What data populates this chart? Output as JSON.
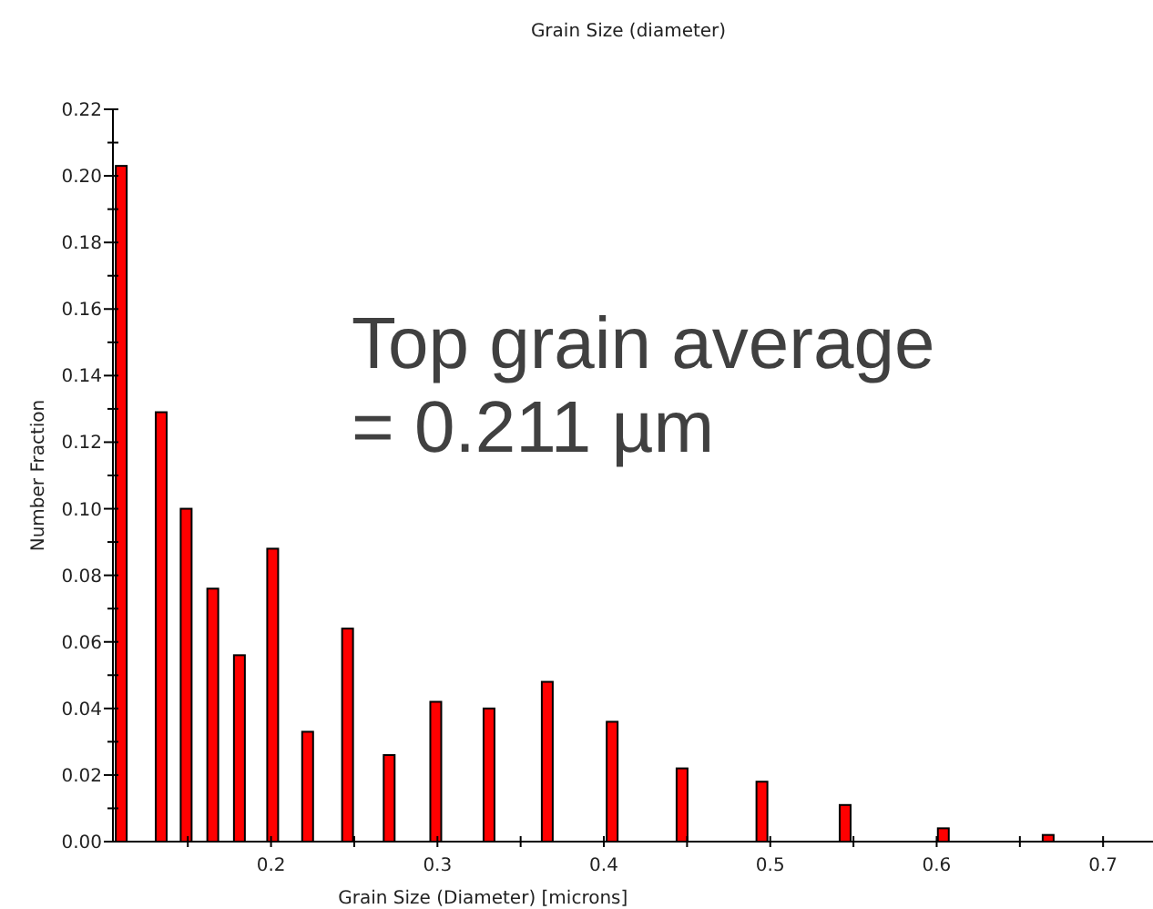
{
  "chart_data": {
    "type": "bar",
    "title": "Grain Size (diameter)",
    "xlabel": "Grain Size (Diameter) [microns]",
    "ylabel": "Number Fraction",
    "x": [
      0.11,
      0.134,
      0.149,
      0.165,
      0.181,
      0.201,
      0.222,
      0.246,
      0.271,
      0.299,
      0.331,
      0.366,
      0.405,
      0.447,
      0.495,
      0.545,
      0.604,
      0.667
    ],
    "series": [
      {
        "color": "#ff0000",
        "values": [
          0.203,
          0.129,
          0.1,
          0.076,
          0.056,
          0.088,
          0.033,
          0.064,
          0.026,
          0.042,
          0.04,
          0.048,
          0.036,
          0.022,
          0.018,
          0.011,
          0.004,
          0.002
        ]
      }
    ],
    "xlim": [
      0.105,
      0.73
    ],
    "xticks": [
      {
        "value": 0.15,
        "label": null
      },
      0.2,
      {
        "value": 0.25,
        "label": null
      },
      0.3,
      {
        "value": 0.35,
        "label": null
      },
      0.4,
      {
        "value": 0.45,
        "label": null
      },
      0.5,
      {
        "value": 0.55,
        "label": null
      },
      0.6,
      {
        "value": 0.65,
        "label": null
      },
      0.7
    ],
    "ylim": [
      0,
      0.22
    ],
    "yticks": [
      {
        "value": 0,
        "label": "0.00"
      },
      {
        "value": 0.01,
        "label": null
      },
      {
        "value": 0.02,
        "label": "0.02"
      },
      {
        "value": 0.03,
        "label": null
      },
      {
        "value": 0.04,
        "label": "0.04"
      },
      {
        "value": 0.05,
        "label": null
      },
      {
        "value": 0.06,
        "label": "0.06"
      },
      {
        "value": 0.07,
        "label": null
      },
      {
        "value": 0.08,
        "label": "0.08"
      },
      {
        "value": 0.09,
        "label": null
      },
      {
        "value": 0.1,
        "label": "0.10"
      },
      {
        "value": 0.11,
        "label": null
      },
      {
        "value": 0.12,
        "label": "0.12"
      },
      {
        "value": 0.13,
        "label": null
      },
      {
        "value": 0.14,
        "label": "0.14"
      },
      {
        "value": 0.15,
        "label": null
      },
      {
        "value": 0.16,
        "label": "0.16"
      },
      {
        "value": 0.17,
        "label": null
      },
      {
        "value": 0.18,
        "label": "0.18"
      },
      {
        "value": 0.19,
        "label": null
      },
      {
        "value": 0.2,
        "label": "0.20"
      },
      {
        "value": 0.21,
        "label": null
      },
      {
        "value": 0.22,
        "label": "0.22"
      }
    ],
    "annotations": [
      "Top grain average\n= 0.211 µm"
    ]
  }
}
